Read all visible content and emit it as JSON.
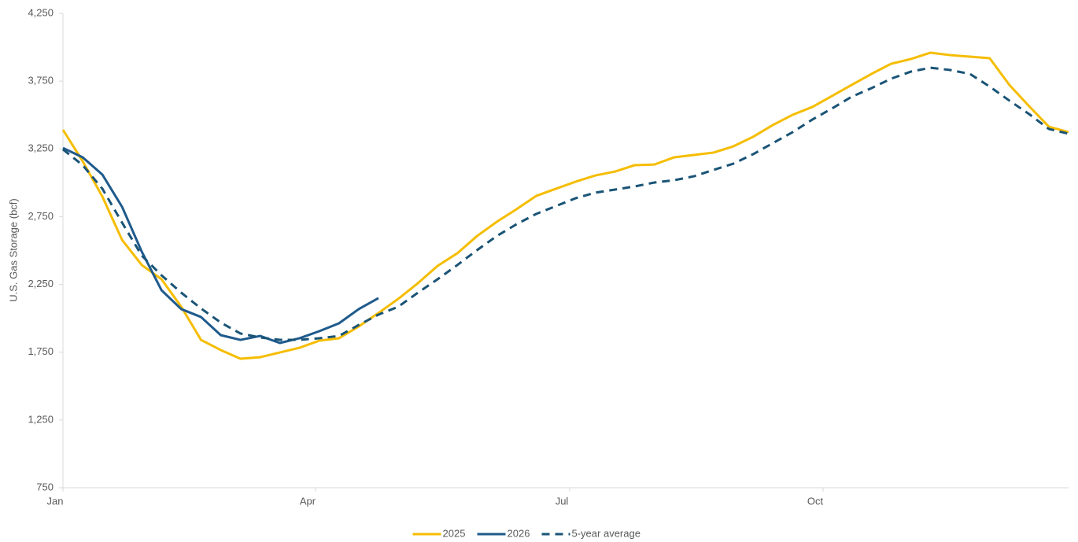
{
  "chart_data": {
    "type": "line",
    "y_label": "U.S. Gas Storage (bcf)",
    "x": [
      0,
      1,
      2,
      3,
      4,
      5,
      6,
      7,
      8,
      9,
      10,
      11,
      12,
      13,
      14,
      15,
      16,
      17,
      18,
      19,
      20,
      21,
      22,
      23,
      24,
      25,
      26,
      27,
      28,
      29,
      30,
      31,
      32,
      33,
      34,
      35,
      36,
      37,
      38,
      39,
      40,
      41,
      42,
      43,
      44,
      45,
      46,
      47,
      48,
      49,
      50,
      51
    ],
    "xlim": [
      0,
      51
    ],
    "xticks": [
      {
        "value": 0,
        "label": "Jan"
      },
      {
        "value": 12.81,
        "label": "Apr"
      },
      {
        "value": 25.7,
        "label": "Jul"
      },
      {
        "value": 38.55,
        "label": "Oct"
      }
    ],
    "ylim": [
      750,
      4250
    ],
    "yticks": [
      {
        "value": 750,
        "label": "750"
      },
      {
        "value": 1250,
        "label": "1,250"
      },
      {
        "value": 1750,
        "label": "1,750"
      },
      {
        "value": 2250,
        "label": "2,250"
      },
      {
        "value": 2750,
        "label": "2,750"
      },
      {
        "value": 3250,
        "label": "3,250"
      },
      {
        "value": 3750,
        "label": "3,750"
      },
      {
        "value": 4250,
        "label": "4,250"
      }
    ],
    "grid": false,
    "legend": "bottom",
    "series": [
      {
        "name": "2025",
        "color": "#f5bd00",
        "dash": false,
        "values": [
          3391,
          3159,
          2898,
          2578,
          2393,
          2288,
          2085,
          1841,
          1766,
          1702,
          1713,
          1748,
          1783,
          1835,
          1853,
          1940,
          2039,
          2143,
          2259,
          2387,
          2480,
          2607,
          2712,
          2805,
          2903,
          2956,
          3008,
          3054,
          3083,
          3130,
          3135,
          3188,
          3205,
          3223,
          3269,
          3339,
          3426,
          3501,
          3559,
          3640,
          3722,
          3803,
          3878,
          3913,
          3960,
          3942,
          3931,
          3919,
          3722,
          3565,
          3414,
          3374
        ]
      },
      {
        "name": "2026",
        "color": "#1f5a8c",
        "dash": false,
        "values": [
          3257,
          3188,
          3060,
          2822,
          2491,
          2207,
          2068,
          2010,
          1876,
          1841,
          1870,
          1818,
          1853,
          1905,
          1963,
          2068,
          2149,
          null,
          null,
          null,
          null,
          null,
          null,
          null,
          null,
          null,
          null,
          null,
          null,
          null,
          null,
          null,
          null,
          null,
          null,
          null,
          null,
          null,
          null,
          null,
          null,
          null,
          null,
          null,
          null,
          null,
          null,
          null,
          null,
          null,
          null,
          null
        ]
      },
      {
        "name": "5-year average",
        "color": "#1a5476",
        "dash": true,
        "values": [
          3246,
          3130,
          2956,
          2706,
          2462,
          2317,
          2189,
          2073,
          1969,
          1888,
          1859,
          1841,
          1841,
          1853,
          1870,
          1951,
          2027,
          2085,
          2189,
          2288,
          2393,
          2503,
          2607,
          2694,
          2770,
          2828,
          2886,
          2927,
          2950,
          2973,
          3002,
          3019,
          3048,
          3095,
          3141,
          3211,
          3292,
          3373,
          3466,
          3548,
          3635,
          3698,
          3768,
          3820,
          3849,
          3832,
          3803,
          3710,
          3606,
          3507,
          3397,
          3362
        ]
      }
    ]
  }
}
